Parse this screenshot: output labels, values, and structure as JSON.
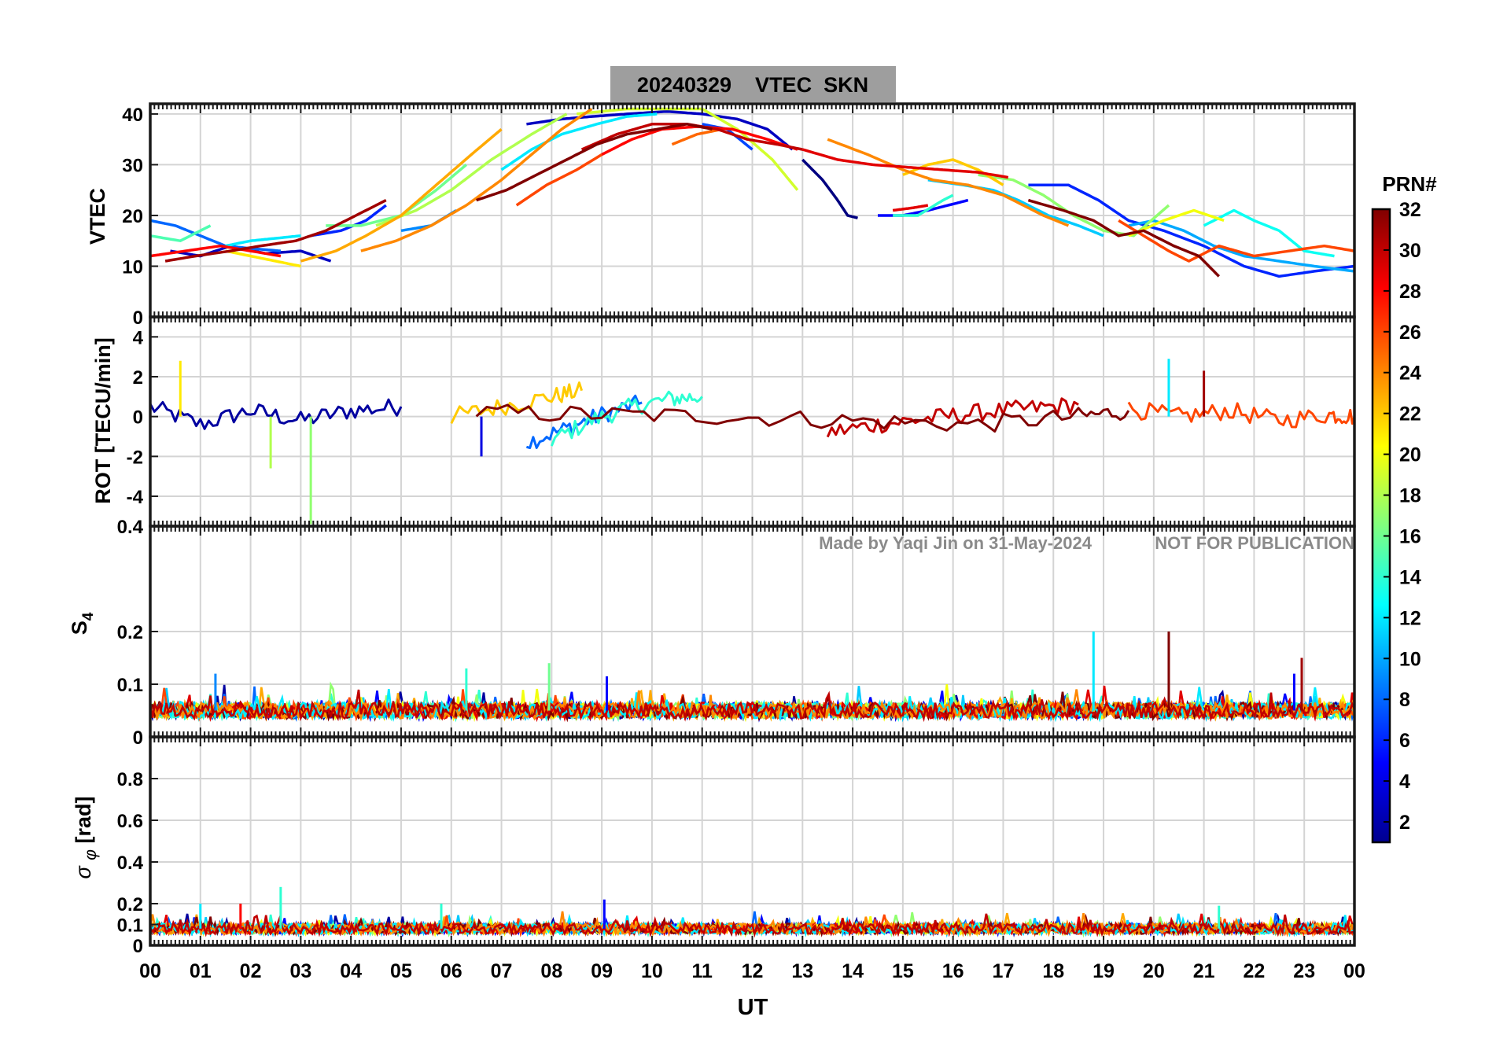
{
  "figure": {
    "title": "20240329    VTEC  SKN",
    "xlabel": "UT",
    "watermark_author": "Made by Yaqi Jin on 31-May-2024",
    "watermark_notice": "NOT FOR PUBLICATION",
    "colors": {
      "title_box": "#9e9e9e",
      "watermark": "#8a8a8a",
      "grid": "#d4d4d4"
    }
  },
  "colorbar": {
    "label": "PRN#",
    "ticks": [
      "2",
      "4",
      "6",
      "8",
      "10",
      "12",
      "14",
      "16",
      "18",
      "20",
      "22",
      "24",
      "26",
      "28",
      "30",
      "32"
    ],
    "range": [
      1,
      32
    ],
    "colormap": "jet"
  },
  "chart_data": [
    {
      "type": "line",
      "panel": "vtec",
      "ylabel": "VTEC",
      "xlim": [
        0,
        24
      ],
      "ylim": [
        0,
        42
      ],
      "yticks": [
        "0",
        "10",
        "20",
        "30",
        "40"
      ],
      "xticks": [
        "00",
        "01",
        "02",
        "03",
        "04",
        "05",
        "06",
        "07",
        "08",
        "09",
        "10",
        "11",
        "12",
        "13",
        "14",
        "15",
        "16",
        "17",
        "18",
        "19",
        "20",
        "21",
        "22",
        "23",
        "00"
      ],
      "grid": true,
      "series": [
        {
          "prn": 1,
          "x": [
            13.0,
            13.4,
            13.7,
            13.9,
            14.1
          ],
          "y": [
            31,
            27,
            23,
            20,
            19.5
          ]
        },
        {
          "prn": 3,
          "x": [
            0.4,
            1.0,
            1.6,
            2.3,
            3.0,
            3.6
          ],
          "y": [
            13,
            12,
            14,
            12.5,
            13,
            11
          ]
        },
        {
          "prn": 3,
          "x": [
            7.5,
            8.2,
            8.8,
            9.5,
            10.3,
            11.0,
            11.7,
            12.3,
            12.8
          ],
          "y": [
            38,
            39,
            39.5,
            40,
            40.5,
            40,
            39,
            37,
            33
          ]
        },
        {
          "prn": 5,
          "x": [
            14.5,
            15.0,
            15.5,
            15.9,
            16.3
          ],
          "y": [
            20,
            20,
            21,
            22,
            23
          ]
        },
        {
          "prn": 6,
          "x": [
            17.5,
            18.3,
            18.9,
            19.5,
            20.2,
            21.0,
            21.8,
            22.5,
            23.2,
            24.0
          ],
          "y": [
            26,
            26,
            23,
            19,
            17,
            14,
            10,
            8,
            9,
            10
          ]
        },
        {
          "prn": 6,
          "x": [
            3.2,
            3.8,
            4.3,
            4.7
          ],
          "y": [
            16,
            17,
            19,
            22
          ]
        },
        {
          "prn": 7,
          "x": [
            11.0,
            11.5,
            12.0
          ],
          "y": [
            38,
            37,
            33
          ]
        },
        {
          "prn": 8,
          "x": [
            0.0,
            0.5,
            1.0,
            1.5,
            2.0,
            2.6
          ],
          "y": [
            19,
            18,
            16,
            14,
            13.5,
            13
          ]
        },
        {
          "prn": 9,
          "x": [
            5.0,
            5.6,
            6.1
          ],
          "y": [
            17,
            18,
            21
          ]
        },
        {
          "prn": 10,
          "x": [
            19.5,
            20.0,
            20.6,
            21.2,
            21.8,
            22.5,
            23.2,
            24.0
          ],
          "y": [
            18,
            19,
            17,
            14,
            12,
            11,
            10,
            9
          ]
        },
        {
          "prn": 11,
          "x": [
            15.5,
            16.2,
            16.8,
            17.3,
            17.9,
            18.5,
            19.0
          ],
          "y": [
            27,
            26,
            25,
            23,
            20,
            18,
            16
          ]
        },
        {
          "prn": 12,
          "x": [
            7.0,
            7.6,
            8.2,
            8.9,
            9.5,
            10.1
          ],
          "y": [
            29,
            33,
            36,
            38,
            39.5,
            40
          ]
        },
        {
          "prn": 12,
          "x": [
            1.5,
            2.0,
            2.5,
            3.0
          ],
          "y": [
            14,
            15,
            15.5,
            16
          ]
        },
        {
          "prn": 13,
          "x": [
            21.0,
            21.6,
            22.0,
            22.5,
            23.0,
            23.6
          ],
          "y": [
            18,
            21,
            19,
            17,
            13,
            12
          ]
        },
        {
          "prn": 14,
          "x": [
            14.8,
            15.3,
            15.8,
            16.0
          ],
          "y": [
            20,
            20,
            23,
            24
          ]
        },
        {
          "prn": 15,
          "x": [
            0.0,
            0.6,
            1.2
          ],
          "y": [
            16,
            15,
            18
          ]
        },
        {
          "prn": 16,
          "x": [
            3.5,
            4.2,
            5.0,
            5.7,
            6.3
          ],
          "y": [
            18,
            18,
            20,
            25,
            30
          ]
        },
        {
          "prn": 17,
          "x": [
            16.5,
            17.2,
            17.8,
            18.4,
            19.0,
            19.6,
            20.3
          ],
          "y": [
            28,
            27,
            24,
            20,
            17,
            16,
            22
          ]
        },
        {
          "prn": 18,
          "x": [
            4.5,
            5.3,
            6.0,
            6.8,
            7.6,
            8.3
          ],
          "y": [
            18,
            21,
            25,
            31,
            36,
            40
          ]
        },
        {
          "prn": 19,
          "x": [
            8.5,
            9.5,
            10.3,
            11.0,
            11.7,
            12.4,
            12.9
          ],
          "y": [
            40,
            41,
            41,
            41,
            37,
            31,
            25
          ]
        },
        {
          "prn": 20,
          "x": [
            19.5,
            20.2,
            20.8,
            21.4
          ],
          "y": [
            16,
            19,
            21,
            19
          ]
        },
        {
          "prn": 21,
          "x": [
            1.5,
            2.0,
            2.5,
            3.0
          ],
          "y": [
            13,
            12,
            11,
            10
          ]
        },
        {
          "prn": 22,
          "x": [
            15.0,
            15.5,
            16.0,
            16.5,
            17.0
          ],
          "y": [
            28,
            30,
            31,
            29,
            26
          ]
        },
        {
          "prn": 23,
          "x": [
            3.0,
            3.7,
            4.3,
            5.0,
            5.7,
            6.4,
            7.0
          ],
          "y": [
            11,
            13,
            16,
            20,
            26,
            32,
            37
          ]
        },
        {
          "prn": 24,
          "x": [
            4.2,
            4.9,
            5.6,
            6.3,
            7.0,
            7.6,
            8.2,
            8.8
          ],
          "y": [
            13,
            15,
            18,
            22,
            27,
            32,
            37,
            41
          ]
        },
        {
          "prn": 24,
          "x": [
            13.5,
            14.3,
            15.0,
            15.6,
            16.3,
            17.0,
            17.8,
            18.3
          ],
          "y": [
            35,
            32,
            29,
            27,
            26,
            24,
            20,
            18
          ]
        },
        {
          "prn": 25,
          "x": [
            10.4,
            10.9,
            11.4
          ],
          "y": [
            34,
            36,
            37
          ]
        },
        {
          "prn": 26,
          "x": [
            19.3,
            19.8,
            20.3,
            20.7,
            21.3,
            22.0,
            22.7,
            23.4,
            24.0
          ],
          "y": [
            19,
            16,
            13,
            11,
            14,
            12,
            13,
            14,
            13
          ]
        },
        {
          "prn": 26,
          "x": [
            7.3,
            7.9,
            8.5,
            9.0
          ],
          "y": [
            22,
            26,
            29,
            32
          ]
        },
        {
          "prn": 28,
          "x": [
            9.0,
            9.6,
            10.2,
            10.9,
            11.6,
            12.3,
            12.9
          ],
          "y": [
            32,
            35,
            37,
            37.5,
            37,
            35,
            33
          ]
        },
        {
          "prn": 28,
          "x": [
            0.0,
            0.7,
            1.4,
            2.0,
            2.6
          ],
          "y": [
            12,
            13,
            14,
            13,
            12
          ]
        },
        {
          "prn": 29,
          "x": [
            13.0,
            13.7,
            14.4,
            15.1,
            15.8,
            16.5,
            17.1
          ],
          "y": [
            33,
            31,
            30,
            29.5,
            29,
            28.5,
            27.5
          ]
        },
        {
          "prn": 29,
          "x": [
            14.8,
            15.2,
            15.5
          ],
          "y": [
            21,
            21.5,
            22
          ]
        },
        {
          "prn": 30,
          "x": [
            8.6,
            9.3,
            10.0,
            10.7,
            11.3,
            11.9,
            12.5,
            13.0
          ],
          "y": [
            33,
            36,
            38,
            38,
            37,
            35,
            34,
            33
          ]
        },
        {
          "prn": 31,
          "x": [
            0.3,
            0.9,
            1.6,
            2.2,
            2.9,
            3.5,
            4.1,
            4.7
          ],
          "y": [
            11,
            12,
            13,
            14,
            15,
            17,
            20,
            23
          ]
        },
        {
          "prn": 32,
          "x": [
            6.5,
            7.1,
            7.7,
            8.3,
            8.9,
            9.5,
            10.1,
            10.7,
            11.2
          ],
          "y": [
            23,
            25,
            28,
            31,
            34,
            36,
            37,
            38,
            37
          ]
        },
        {
          "prn": 32,
          "x": [
            17.5,
            18.2,
            18.8,
            19.3,
            19.8,
            20.4,
            20.9,
            21.3
          ],
          "y": [
            23,
            21,
            19,
            16,
            17,
            14,
            12,
            8
          ]
        }
      ]
    },
    {
      "type": "line",
      "panel": "rot",
      "ylabel": "ROT [TECU/min]",
      "xlim": [
        0,
        24
      ],
      "ylim": [
        -5.5,
        5
      ],
      "yticks": [
        "-4",
        "-2",
        "0",
        "2",
        "4"
      ],
      "grid": true,
      "series": [
        {
          "prn": 2,
          "x": [
            0.0,
            1.0,
            2.0,
            3.0,
            4.0,
            5.0
          ],
          "y": [
            0.5,
            -0.4,
            0.3,
            -0.2,
            0.3,
            0.5
          ]
        },
        {
          "prn": 8,
          "x": [
            7.5,
            8.3,
            9.0,
            9.8
          ],
          "y": [
            -1.3,
            -0.6,
            0.1,
            0.7
          ]
        },
        {
          "prn": 14,
          "x": [
            8.0,
            8.8,
            9.6,
            10.4,
            11.0
          ],
          "y": [
            -1.2,
            -0.2,
            0.5,
            0.9,
            1.0
          ]
        },
        {
          "prn": 22,
          "x": [
            6.0,
            7.0,
            8.0,
            8.6
          ],
          "y": [
            0.0,
            0.5,
            1.0,
            1.3
          ]
        },
        {
          "prn": 30,
          "x": [
            13.5,
            14.5,
            15.5,
            16.5,
            17.5,
            18.5
          ],
          "y": [
            -0.8,
            -0.4,
            -0.1,
            0.2,
            0.4,
            0.6
          ]
        },
        {
          "prn": 32,
          "x": [
            6.5,
            9.0,
            11.5,
            14.0,
            16.5,
            18.5,
            19.5
          ],
          "y": [
            0.2,
            0.1,
            0.0,
            -0.2,
            -0.4,
            0.0,
            0.3
          ]
        },
        {
          "prn": 26,
          "x": [
            19.5,
            20.5,
            21.5,
            22.5,
            23.5,
            24.0
          ],
          "y": [
            0.4,
            0.0,
            0.3,
            -0.2,
            0.1,
            0.0
          ]
        }
      ],
      "spikes": [
        {
          "prn": 17,
          "x": 3.2,
          "y": -5.4
        },
        {
          "prn": 21,
          "x": 0.6,
          "y": 2.8
        },
        {
          "prn": 18,
          "x": 2.4,
          "y": -2.6
        },
        {
          "prn": 4,
          "x": 6.6,
          "y": -2.0
        },
        {
          "prn": 12,
          "x": 20.3,
          "y": 2.9
        },
        {
          "prn": 31,
          "x": 21.0,
          "y": 2.3
        }
      ]
    },
    {
      "type": "line",
      "panel": "s4",
      "ylabel": "S4",
      "xlim": [
        0,
        24
      ],
      "ylim": [
        0,
        0.4
      ],
      "yticks": [
        "0",
        "0.1",
        "0.2",
        "0.4"
      ],
      "grid": true,
      "baseline": 0.05,
      "noise": 0.015,
      "spikes": [
        {
          "prn": 12,
          "x": 18.8,
          "y": 0.2
        },
        {
          "prn": 32,
          "x": 20.3,
          "y": 0.2
        },
        {
          "prn": 31,
          "x": 22.95,
          "y": 0.15
        },
        {
          "prn": 16,
          "x": 7.95,
          "y": 0.14
        },
        {
          "prn": 14,
          "x": 6.3,
          "y": 0.13
        },
        {
          "prn": 5,
          "x": 9.1,
          "y": 0.115
        },
        {
          "prn": 9,
          "x": 1.3,
          "y": 0.12
        },
        {
          "prn": 5,
          "x": 22.8,
          "y": 0.12
        }
      ]
    },
    {
      "type": "line",
      "panel": "sigma_phi",
      "ylabel": "σ φ [rad]",
      "xlim": [
        0,
        24
      ],
      "ylim": [
        0,
        1
      ],
      "yticks": [
        "0",
        "0.1",
        "0.2",
        "0.4",
        "0.6",
        "0.8"
      ],
      "grid": true,
      "baseline": 0.08,
      "noise": 0.025,
      "spikes": [
        {
          "prn": 14,
          "x": 2.6,
          "y": 0.28
        },
        {
          "prn": 5,
          "x": 9.05,
          "y": 0.22
        },
        {
          "prn": 12,
          "x": 1.0,
          "y": 0.2
        },
        {
          "prn": 28,
          "x": 1.8,
          "y": 0.2
        },
        {
          "prn": 14,
          "x": 5.8,
          "y": 0.2
        },
        {
          "prn": 14,
          "x": 21.3,
          "y": 0.19
        }
      ]
    }
  ]
}
